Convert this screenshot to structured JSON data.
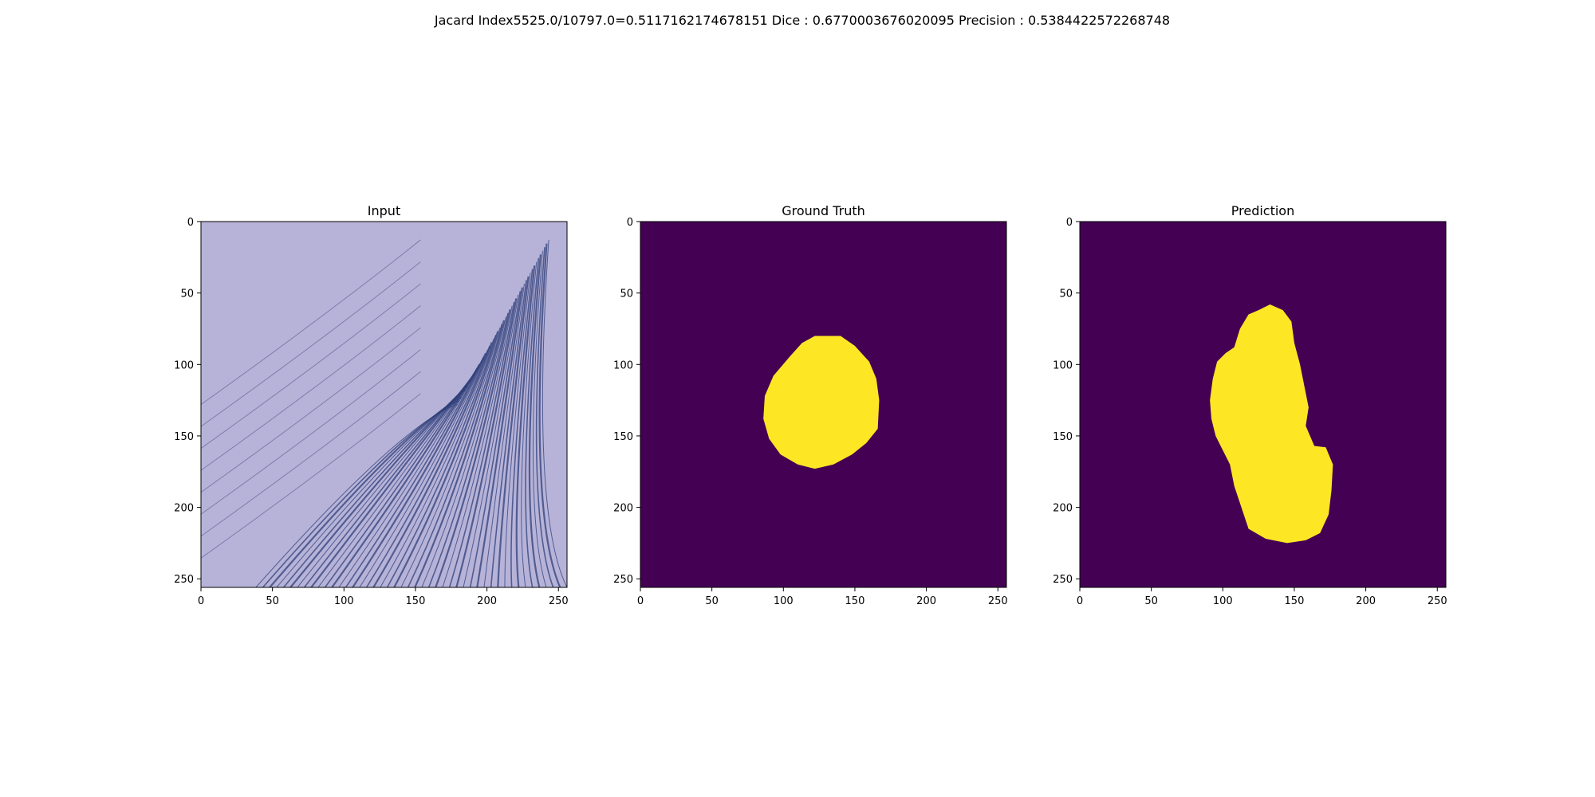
{
  "figure": {
    "suptitle": "Jacard Index5525.0/10797.0=0.5117162174678151 Dice : 0.6770003676020095 Precision : 0.5384422572268748"
  },
  "colors": {
    "background_mask": "#440154",
    "foreground_mask": "#fde725",
    "axis": "#000000",
    "image_base": "#b7b3d8",
    "hair": "#2f3f7a"
  },
  "chart_data": [
    {
      "type": "image",
      "title": "Input",
      "content": "dermoscopy photo with dark hairs",
      "xlim": [
        0,
        255
      ],
      "ylim": [
        255,
        0
      ],
      "xticks": [
        0,
        50,
        100,
        150,
        200,
        250
      ],
      "yticks": [
        0,
        50,
        100,
        150,
        200,
        250
      ]
    },
    {
      "type": "heatmap",
      "title": "Ground Truth",
      "colormap": "viridis",
      "values": [
        0,
        1
      ],
      "xlim": [
        0,
        255
      ],
      "ylim": [
        255,
        0
      ],
      "xticks": [
        0,
        50,
        100,
        150,
        200,
        250
      ],
      "yticks": [
        0,
        50,
        100,
        150,
        200,
        250
      ],
      "mask_outline": [
        [
          122,
          80
        ],
        [
          140,
          80
        ],
        [
          150,
          87
        ],
        [
          160,
          98
        ],
        [
          165,
          110
        ],
        [
          167,
          125
        ],
        [
          166,
          145
        ],
        [
          158,
          155
        ],
        [
          148,
          163
        ],
        [
          135,
          170
        ],
        [
          122,
          173
        ],
        [
          110,
          170
        ],
        [
          98,
          163
        ],
        [
          90,
          152
        ],
        [
          86,
          138
        ],
        [
          87,
          122
        ],
        [
          93,
          108
        ],
        [
          104,
          95
        ],
        [
          113,
          85
        ]
      ]
    },
    {
      "type": "heatmap",
      "title": "Prediction",
      "colormap": "viridis",
      "values": [
        0,
        1
      ],
      "xlim": [
        0,
        255
      ],
      "ylim": [
        255,
        0
      ],
      "xticks": [
        0,
        50,
        100,
        150,
        200,
        250
      ],
      "yticks": [
        0,
        50,
        100,
        150,
        200,
        250
      ],
      "mask_outline": [
        [
          125,
          62
        ],
        [
          133,
          58
        ],
        [
          142,
          62
        ],
        [
          148,
          70
        ],
        [
          150,
          85
        ],
        [
          154,
          100
        ],
        [
          157,
          115
        ],
        [
          160,
          130
        ],
        [
          158,
          143
        ],
        [
          164,
          157
        ],
        [
          172,
          158
        ],
        [
          177,
          170
        ],
        [
          176,
          188
        ],
        [
          174,
          205
        ],
        [
          168,
          218
        ],
        [
          158,
          223
        ],
        [
          145,
          225
        ],
        [
          130,
          222
        ],
        [
          118,
          215
        ],
        [
          113,
          200
        ],
        [
          108,
          185
        ],
        [
          105,
          170
        ],
        [
          100,
          160
        ],
        [
          95,
          150
        ],
        [
          92,
          138
        ],
        [
          91,
          125
        ],
        [
          93,
          110
        ],
        [
          96,
          98
        ],
        [
          102,
          92
        ],
        [
          108,
          88
        ],
        [
          112,
          75
        ],
        [
          118,
          65
        ]
      ]
    }
  ]
}
